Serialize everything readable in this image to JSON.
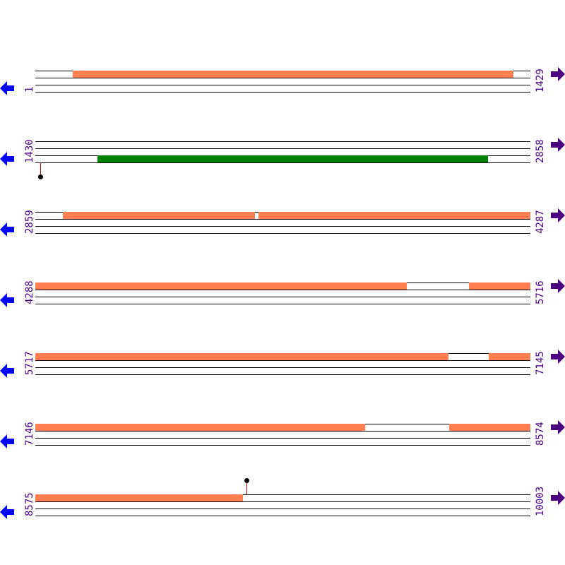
{
  "colors": {
    "forward_feature": "#ff7f50",
    "reverse_feature": "#008000",
    "label": "#4b0082",
    "left_arrow": "#0000ff",
    "right_arrow": "#4b0082",
    "marker_stem": "#d00000"
  },
  "rows": [
    {
      "start": "1",
      "end": "1429",
      "s": 1,
      "e": 1429,
      "features": [
        {
          "from": 109,
          "to": 1380,
          "strand": "top",
          "color": "#ff7f50"
        }
      ],
      "markers": []
    },
    {
      "start": "1430",
      "end": "2858",
      "s": 1430,
      "e": 2858,
      "features": [
        {
          "from": 1609,
          "to": 2735,
          "strand": "bottom",
          "color": "#008000"
        }
      ],
      "markers": [
        {
          "pos": 1444,
          "side": "below"
        }
      ]
    },
    {
      "start": "2859",
      "end": "4287",
      "s": 2859,
      "e": 4287,
      "features": [
        {
          "from": 2938,
          "to": 3491,
          "strand": "top",
          "color": "#ff7f50"
        },
        {
          "from": 3503,
          "to": 4287,
          "strand": "top",
          "color": "#ff7f50"
        }
      ],
      "markers": []
    },
    {
      "start": "4288",
      "end": "5716",
      "s": 4288,
      "e": 5716,
      "features": [
        {
          "from": 4288,
          "to": 5360,
          "strand": "top",
          "color": "#ff7f50"
        },
        {
          "from": 5540,
          "to": 5716,
          "strand": "top",
          "color": "#ff7f50"
        }
      ],
      "markers": []
    },
    {
      "start": "5717",
      "end": "7145",
      "s": 5717,
      "e": 7145,
      "features": [
        {
          "from": 5717,
          "to": 6909,
          "strand": "top",
          "color": "#ff7f50"
        },
        {
          "from": 7026,
          "to": 7145,
          "strand": "top",
          "color": "#ff7f50"
        }
      ],
      "markers": []
    },
    {
      "start": "7146",
      "end": "8574",
      "s": 7146,
      "e": 8574,
      "features": [
        {
          "from": 7146,
          "to": 8098,
          "strand": "top",
          "color": "#ff7f50"
        },
        {
          "from": 8340,
          "to": 8574,
          "strand": "top",
          "color": "#ff7f50"
        }
      ],
      "markers": []
    },
    {
      "start": "8575",
      "end": "10003",
      "s": 8575,
      "e": 10003,
      "features": [
        {
          "from": 8575,
          "to": 9174,
          "strand": "top",
          "color": "#ff7f50"
        }
      ],
      "markers": [
        {
          "pos": 9184,
          "side": "above"
        }
      ]
    }
  ]
}
